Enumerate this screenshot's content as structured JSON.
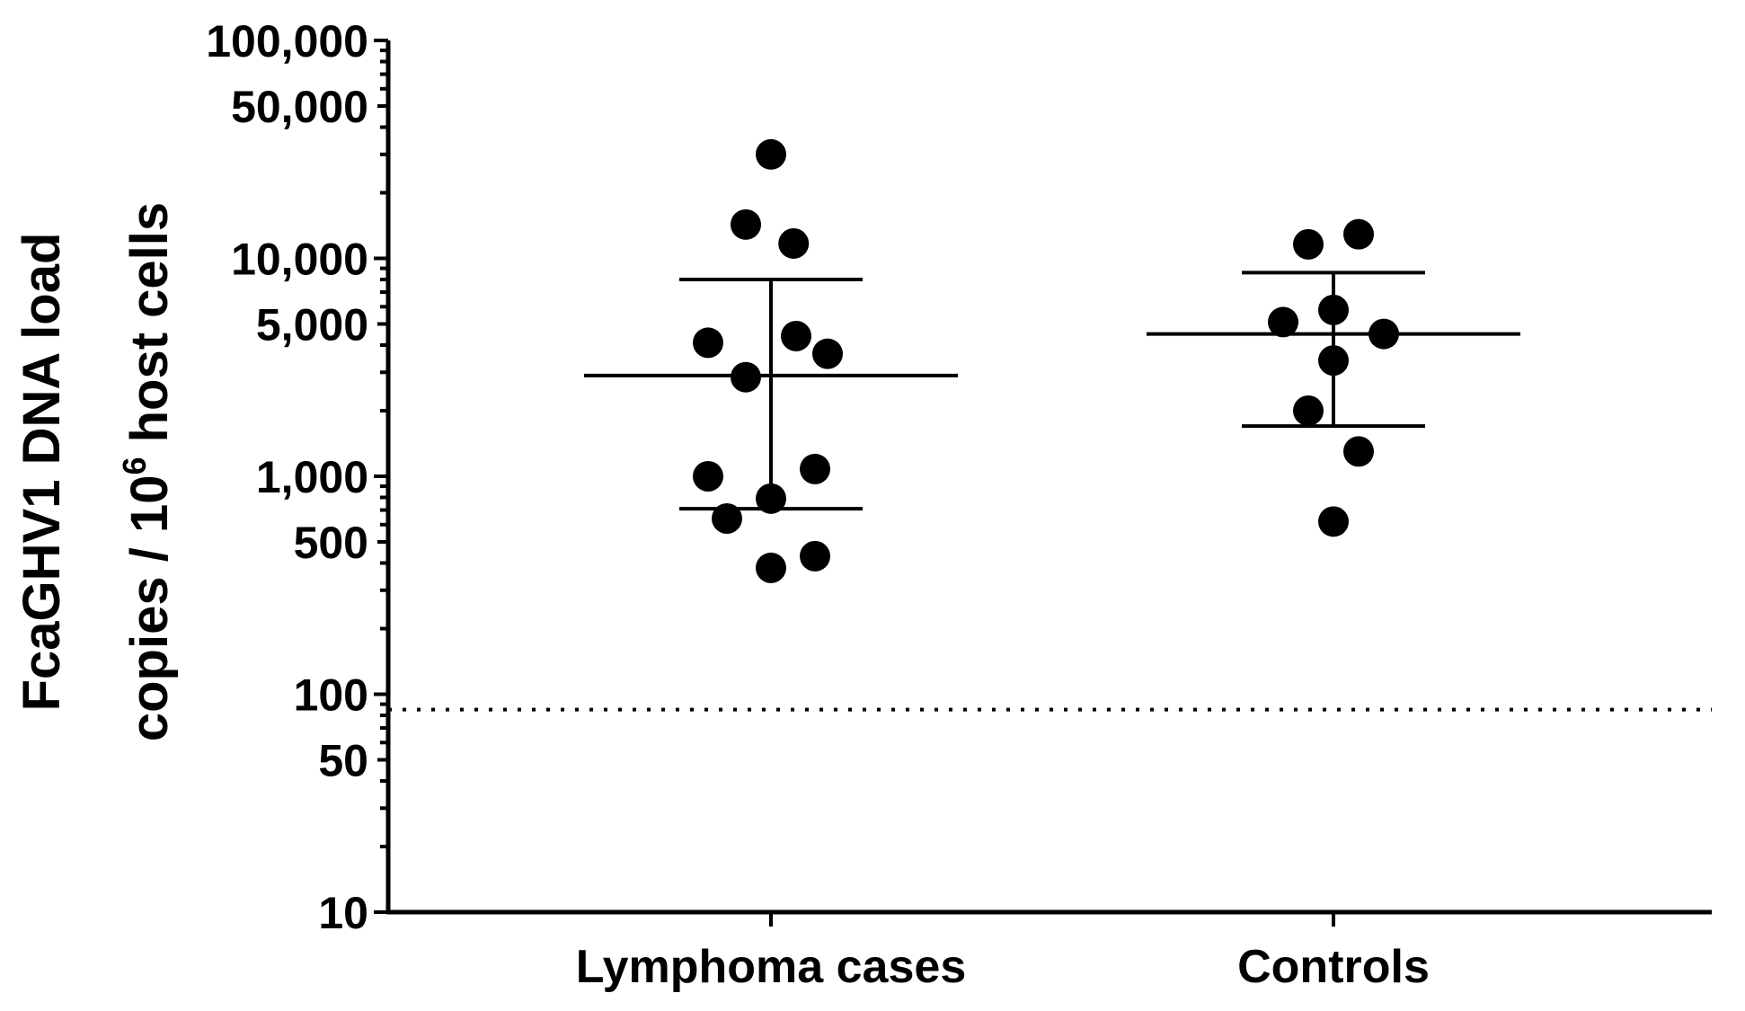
{
  "chart_data": {
    "type": "scatter",
    "title": "",
    "xlabel": "",
    "ylabel_line1": "FcaGHV1 DNA load",
    "ylabel_line2_prefix": "copies / 10",
    "ylabel_line2_sup": "6",
    "ylabel_line2_suffix": " host cells",
    "yscale": "log",
    "ylim": [
      10,
      100000
    ],
    "ytick_labels": [
      {
        "value": 100000,
        "label": "100,000"
      },
      {
        "value": 50000,
        "label": "50,000"
      },
      {
        "value": 10000,
        "label": "10,000"
      },
      {
        "value": 5000,
        "label": "5,000"
      },
      {
        "value": 1000,
        "label": "1,000"
      },
      {
        "value": 500,
        "label": "500"
      },
      {
        "value": 100,
        "label": "100"
      },
      {
        "value": 50,
        "label": "50"
      },
      {
        "value": 10,
        "label": "10"
      }
    ],
    "detection_limit": 85,
    "groups": [
      {
        "name": "Lymphoma cases",
        "mean": 2900,
        "sd_upper": 8000,
        "sd_lower": 710,
        "points": [
          {
            "x": 0.0,
            "y": 30000
          },
          {
            "x": -0.2,
            "y": 14300
          },
          {
            "x": 0.18,
            "y": 11700
          },
          {
            "x": -0.5,
            "y": 4100
          },
          {
            "x": 0.45,
            "y": 3650
          },
          {
            "x": 0.2,
            "y": 4400
          },
          {
            "x": -0.2,
            "y": 2850
          },
          {
            "x": -0.5,
            "y": 1000
          },
          {
            "x": 0.35,
            "y": 1080
          },
          {
            "x": 0.0,
            "y": 790
          },
          {
            "x": -0.35,
            "y": 640
          },
          {
            "x": 0.35,
            "y": 430
          },
          {
            "x": 0.0,
            "y": 380
          }
        ]
      },
      {
        "name": "Controls",
        "mean": 4500,
        "sd_upper": 8600,
        "sd_lower": 1700,
        "points": [
          {
            "x": -0.2,
            "y": 11600
          },
          {
            "x": 0.2,
            "y": 12900
          },
          {
            "x": -0.4,
            "y": 5100
          },
          {
            "x": 0.0,
            "y": 5800
          },
          {
            "x": 0.4,
            "y": 4500
          },
          {
            "x": 0.0,
            "y": 3400
          },
          {
            "x": -0.2,
            "y": 2000
          },
          {
            "x": 0.2,
            "y": 1300
          },
          {
            "x": 0.0,
            "y": 620
          }
        ]
      }
    ]
  }
}
